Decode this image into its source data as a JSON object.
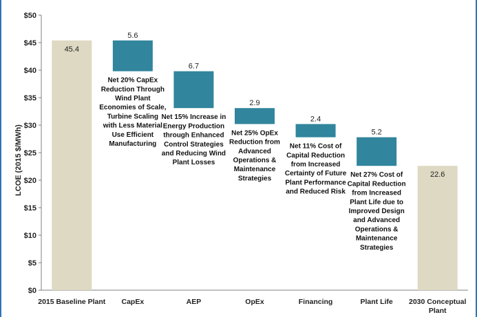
{
  "chart_data": {
    "type": "waterfall",
    "ylabel": "LCOE (2015 $/MWh)",
    "ylim": [
      0,
      50
    ],
    "yticks": [
      "$0",
      "$5",
      "$10",
      "$15",
      "$20",
      "$25",
      "$30",
      "$35",
      "$40",
      "$45",
      "$50"
    ],
    "grid": false,
    "colors": {
      "total": "#ddd9c3",
      "decrease": "#31859c",
      "axis": "#7f7f7f",
      "border": "#2e75b6"
    },
    "bars": [
      {
        "category": "2015 Baseline Plant",
        "kind": "total",
        "value": 45.4,
        "label": "45.4",
        "note": []
      },
      {
        "category": "CapEx",
        "kind": "decrease",
        "value": 5.6,
        "label": "5.6",
        "note": [
          "Net 20% CapEx",
          "Reduction Through",
          "Wind Plant",
          "Economies of Scale,",
          "Turbine Scaling",
          "with Less Material",
          "Use Efficient",
          "Manufacturing"
        ]
      },
      {
        "category": "AEP",
        "kind": "decrease",
        "value": 6.7,
        "label": "6.7",
        "note": [
          "Net 15% Increase in",
          "Energy Production",
          "through Enhanced",
          "Control Strategies",
          "and Reducing Wind",
          "Plant Losses"
        ]
      },
      {
        "category": "OpEx",
        "kind": "decrease",
        "value": 2.9,
        "label": "2.9",
        "note": [
          "Net 25% OpEx",
          "Reduction from",
          "Advanced",
          "Operations &",
          "Maintenance",
          "Strategies"
        ]
      },
      {
        "category": "Financing",
        "kind": "decrease",
        "value": 2.4,
        "label": "2.4",
        "note": [
          "Net 11% Cost of",
          "Capital Reduction",
          "from Increased",
          "Certainty of Future",
          "Plant Performance",
          "and Reduced Risk"
        ]
      },
      {
        "category": "Plant Life",
        "kind": "decrease",
        "value": 5.2,
        "label": "5.2",
        "note": [
          "Net 27% Cost of",
          "Capital Reduction",
          "from Increased",
          "Plant Life due to",
          "Improved Design",
          "and Advanced",
          "Operations &",
          "Maintenance",
          "Strategies"
        ]
      },
      {
        "category": "2030 Conceptual Plant",
        "kind": "total",
        "value": 22.6,
        "label": "22.6",
        "note": []
      }
    ]
  }
}
